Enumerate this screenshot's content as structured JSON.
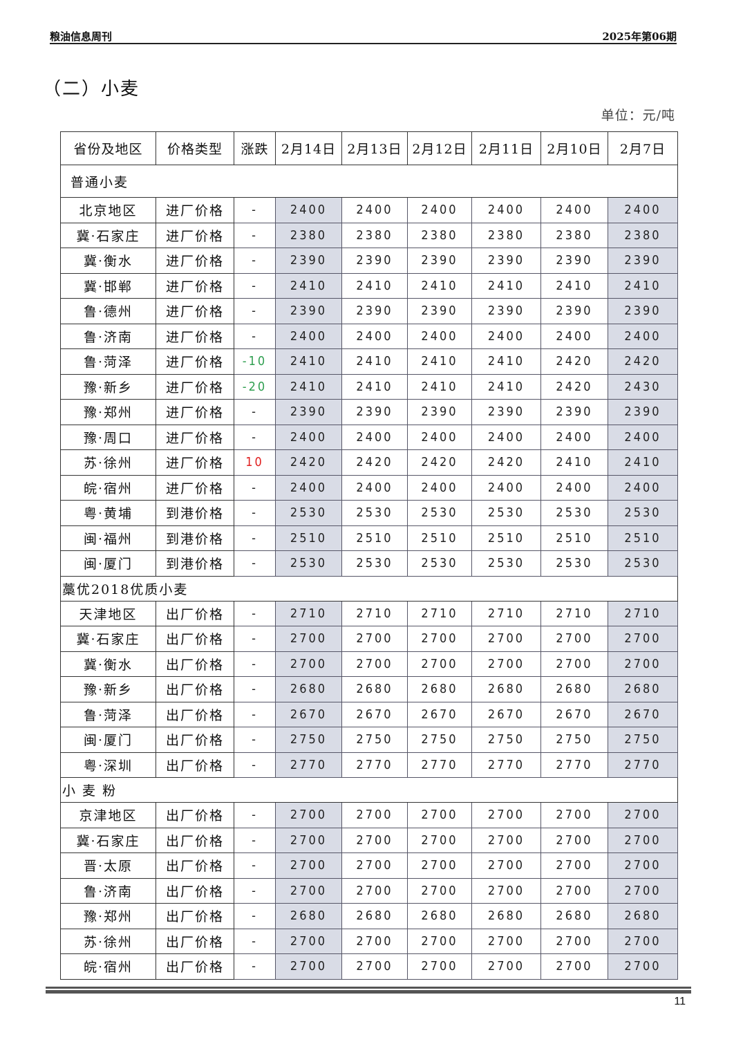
{
  "header": {
    "left": "粮油信息周刊",
    "right": "2025年第06期"
  },
  "title": "（二）小麦",
  "unit": "单位：元/吨",
  "table": {
    "columns": [
      "省份及地区",
      "价格类型",
      "涨跌",
      "2月14日",
      "2月13日",
      "2月12日",
      "2月11日",
      "2月10日",
      "2月7日"
    ],
    "sections": [
      {
        "name": "普通小麦",
        "rows": [
          [
            "北京地区",
            "进厂价格",
            "-",
            "2400",
            "2400",
            "2400",
            "2400",
            "2400",
            "2400"
          ],
          [
            "冀·石家庄",
            "进厂价格",
            "-",
            "2380",
            "2380",
            "2380",
            "2380",
            "2380",
            "2380"
          ],
          [
            "冀·衡水",
            "进厂价格",
            "-",
            "2390",
            "2390",
            "2390",
            "2390",
            "2390",
            "2390"
          ],
          [
            "冀·邯郸",
            "进厂价格",
            "-",
            "2410",
            "2410",
            "2410",
            "2410",
            "2410",
            "2410"
          ],
          [
            "鲁·德州",
            "进厂价格",
            "-",
            "2390",
            "2390",
            "2390",
            "2390",
            "2390",
            "2390"
          ],
          [
            "鲁·济南",
            "进厂价格",
            "-",
            "2400",
            "2400",
            "2400",
            "2400",
            "2400",
            "2400"
          ],
          [
            "鲁·菏泽",
            "进厂价格",
            "-10",
            "2410",
            "2410",
            "2410",
            "2410",
            "2420",
            "2420"
          ],
          [
            "豫·新乡",
            "进厂价格",
            "-20",
            "2410",
            "2410",
            "2410",
            "2410",
            "2420",
            "2430"
          ],
          [
            "豫·郑州",
            "进厂价格",
            "-",
            "2390",
            "2390",
            "2390",
            "2390",
            "2390",
            "2390"
          ],
          [
            "豫·周口",
            "进厂价格",
            "-",
            "2400",
            "2400",
            "2400",
            "2400",
            "2400",
            "2400"
          ],
          [
            "苏·徐州",
            "进厂价格",
            "10",
            "2420",
            "2420",
            "2420",
            "2420",
            "2410",
            "2410"
          ],
          [
            "皖·宿州",
            "进厂价格",
            "-",
            "2400",
            "2400",
            "2400",
            "2400",
            "2400",
            "2400"
          ],
          [
            "粤·黄埔",
            "到港价格",
            "-",
            "2530",
            "2530",
            "2530",
            "2530",
            "2530",
            "2530"
          ],
          [
            "闽·福州",
            "到港价格",
            "-",
            "2510",
            "2510",
            "2510",
            "2510",
            "2510",
            "2510"
          ],
          [
            "闽·厦门",
            "到港价格",
            "-",
            "2530",
            "2530",
            "2530",
            "2530",
            "2530",
            "2530"
          ]
        ]
      },
      {
        "name": "藁优2018优质小麦",
        "rows": [
          [
            "天津地区",
            "出厂价格",
            "-",
            "2710",
            "2710",
            "2710",
            "2710",
            "2710",
            "2710"
          ],
          [
            "冀·石家庄",
            "出厂价格",
            "-",
            "2700",
            "2700",
            "2700",
            "2700",
            "2700",
            "2700"
          ],
          [
            "冀·衡水",
            "出厂价格",
            "-",
            "2700",
            "2700",
            "2700",
            "2700",
            "2700",
            "2700"
          ],
          [
            "豫·新乡",
            "出厂价格",
            "-",
            "2680",
            "2680",
            "2680",
            "2680",
            "2680",
            "2680"
          ],
          [
            "鲁·菏泽",
            "出厂价格",
            "-",
            "2670",
            "2670",
            "2670",
            "2670",
            "2670",
            "2670"
          ],
          [
            "闽·厦门",
            "出厂价格",
            "-",
            "2750",
            "2750",
            "2750",
            "2750",
            "2750",
            "2750"
          ],
          [
            "粤·深圳",
            "出厂价格",
            "-",
            "2770",
            "2770",
            "2770",
            "2770",
            "2770",
            "2770"
          ]
        ]
      },
      {
        "name": "小 麦 粉",
        "rows": [
          [
            "京津地区",
            "出厂价格",
            "-",
            "2700",
            "2700",
            "2700",
            "2700",
            "2700",
            "2700"
          ],
          [
            "冀·石家庄",
            "出厂价格",
            "-",
            "2700",
            "2700",
            "2700",
            "2700",
            "2700",
            "2700"
          ],
          [
            "晋·太原",
            "出厂价格",
            "-",
            "2700",
            "2700",
            "2700",
            "2700",
            "2700",
            "2700"
          ],
          [
            "鲁·济南",
            "出厂价格",
            "-",
            "2700",
            "2700",
            "2700",
            "2700",
            "2700",
            "2700"
          ],
          [
            "豫·郑州",
            "出厂价格",
            "-",
            "2680",
            "2680",
            "2680",
            "2680",
            "2680",
            "2680"
          ],
          [
            "苏·徐州",
            "出厂价格",
            "-",
            "2700",
            "2700",
            "2700",
            "2700",
            "2700",
            "2700"
          ],
          [
            "皖·宿州",
            "出厂价格",
            "-",
            "2700",
            "2700",
            "2700",
            "2700",
            "2700",
            "2700"
          ]
        ]
      }
    ]
  },
  "colors": {
    "up": "#e02020",
    "down": "#2e9e4f",
    "shade": "#d9dce6"
  },
  "page_number": "11"
}
